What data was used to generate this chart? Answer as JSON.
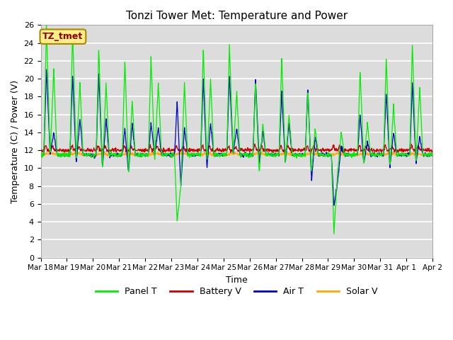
{
  "title": "Tonzi Tower Met: Temperature and Power",
  "xlabel": "Time",
  "ylabel": "Temperature (C) / Power (V)",
  "ylim": [
    0,
    26
  ],
  "yticks": [
    0,
    2,
    4,
    6,
    8,
    10,
    12,
    14,
    16,
    18,
    20,
    22,
    24,
    26
  ],
  "xtick_labels": [
    "Mar 18",
    "Mar 19",
    "Mar 20",
    "Mar 21",
    "Mar 22",
    "Mar 23",
    "Mar 24",
    "Mar 25",
    "Mar 26",
    "Mar 27",
    "Mar 28",
    "Mar 29",
    "Mar 30",
    "Mar 31",
    "Apr 1",
    "Apr 2"
  ],
  "tz_label": "TZ_tmet",
  "bg_color": "#dcdcdc",
  "legend_entries": [
    "Panel T",
    "Battery V",
    "Air T",
    "Solar V"
  ],
  "legend_colors": [
    "#00ee00",
    "#cc0000",
    "#0000cc",
    "#ffaa00"
  ],
  "panel_t_color": "#00ee00",
  "battery_v_color": "#cc0000",
  "air_t_color": "#0000cc",
  "solar_v_color": "#ffaa00",
  "panel_peak_heights": [
    26.0,
    25.5,
    23.5,
    22.0,
    22.5,
    4.0,
    23.5,
    24.0,
    19.5,
    22.5,
    18.5,
    2.7,
    21.0,
    22.5,
    24.0
  ],
  "panel_peak2_heights": [
    21.0,
    19.5,
    19.5,
    17.5,
    19.5,
    19.5,
    20.0,
    18.5,
    15.0,
    16.0,
    14.5,
    14.0,
    15.0,
    17.0,
    19.0
  ],
  "panel_valley_heights": [
    11.5,
    11.0,
    10.0,
    9.5,
    11.0,
    8.0,
    10.5,
    11.5,
    9.5,
    10.5,
    9.5,
    9.5,
    10.5,
    10.0,
    10.5
  ],
  "air_peak_heights": [
    21.0,
    20.5,
    20.5,
    14.5,
    15.0,
    17.5,
    20.0,
    20.5,
    20.0,
    18.5,
    19.0,
    5.8,
    16.0,
    18.5,
    19.5
  ],
  "air_peak2_heights": [
    14.0,
    15.5,
    15.5,
    15.0,
    14.5,
    14.5,
    15.0,
    14.5,
    14.0,
    15.0,
    13.5,
    12.5,
    13.0,
    14.0,
    13.5
  ],
  "air_valley_heights": [
    11.5,
    10.5,
    10.0,
    9.5,
    11.5,
    8.0,
    10.0,
    11.5,
    10.5,
    10.5,
    8.5,
    8.5,
    10.5,
    10.0,
    10.5
  ],
  "baseline": 11.5,
  "battery_base": 12.0,
  "solar_base": 11.5,
  "seed": 123
}
